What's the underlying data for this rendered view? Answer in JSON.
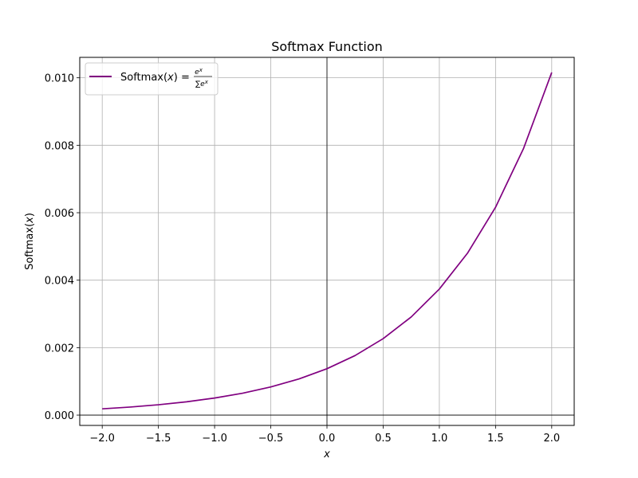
{
  "chart_data": {
    "type": "line",
    "title": "Softmax Function",
    "xlabel": "x",
    "ylabel_prefix": "Softmax(",
    "ylabel_var": "x",
    "ylabel_suffix": ")",
    "xlim": [
      -2.2,
      2.2
    ],
    "ylim": [
      -0.000306,
      0.010606
    ],
    "x_ticks": [
      -2.0,
      -1.5,
      -1.0,
      -0.5,
      0.0,
      0.5,
      1.0,
      1.5,
      2.0
    ],
    "x_tick_labels": [
      "−2.0",
      "−1.5",
      "−1.0",
      "−0.5",
      "0.0",
      "0.5",
      "1.0",
      "1.5",
      "2.0"
    ],
    "y_ticks": [
      0.0,
      0.002,
      0.004,
      0.006,
      0.008,
      0.01
    ],
    "y_tick_labels": [
      "0.000",
      "0.002",
      "0.004",
      "0.006",
      "0.008",
      "0.010"
    ],
    "grid": true,
    "reference_lines": {
      "x": 0,
      "y": 0,
      "color": "#000000"
    },
    "legend_position": "upper-left",
    "legend": {
      "prefix": "Softmax(",
      "var": "x",
      "suffix": ") =",
      "numerator": "e",
      "numerator_sup": "x",
      "denominator": "∑e",
      "denominator_sup": "x"
    },
    "series": [
      {
        "color": "#800080",
        "x": [
          -2.0,
          -1.75,
          -1.5,
          -1.25,
          -1.0,
          -0.75,
          -0.5,
          -0.25,
          0.0,
          0.25,
          0.5,
          0.75,
          1.0,
          1.25,
          1.5,
          1.75,
          2.0
        ],
        "y": [
          0.000186,
          0.000239,
          0.000307,
          0.000394,
          0.000506,
          0.000649,
          0.000834,
          0.001071,
          0.001375,
          0.001765,
          0.002267,
          0.002911,
          0.003737,
          0.004798,
          0.006161,
          0.007911,
          0.010158
        ]
      }
    ]
  }
}
